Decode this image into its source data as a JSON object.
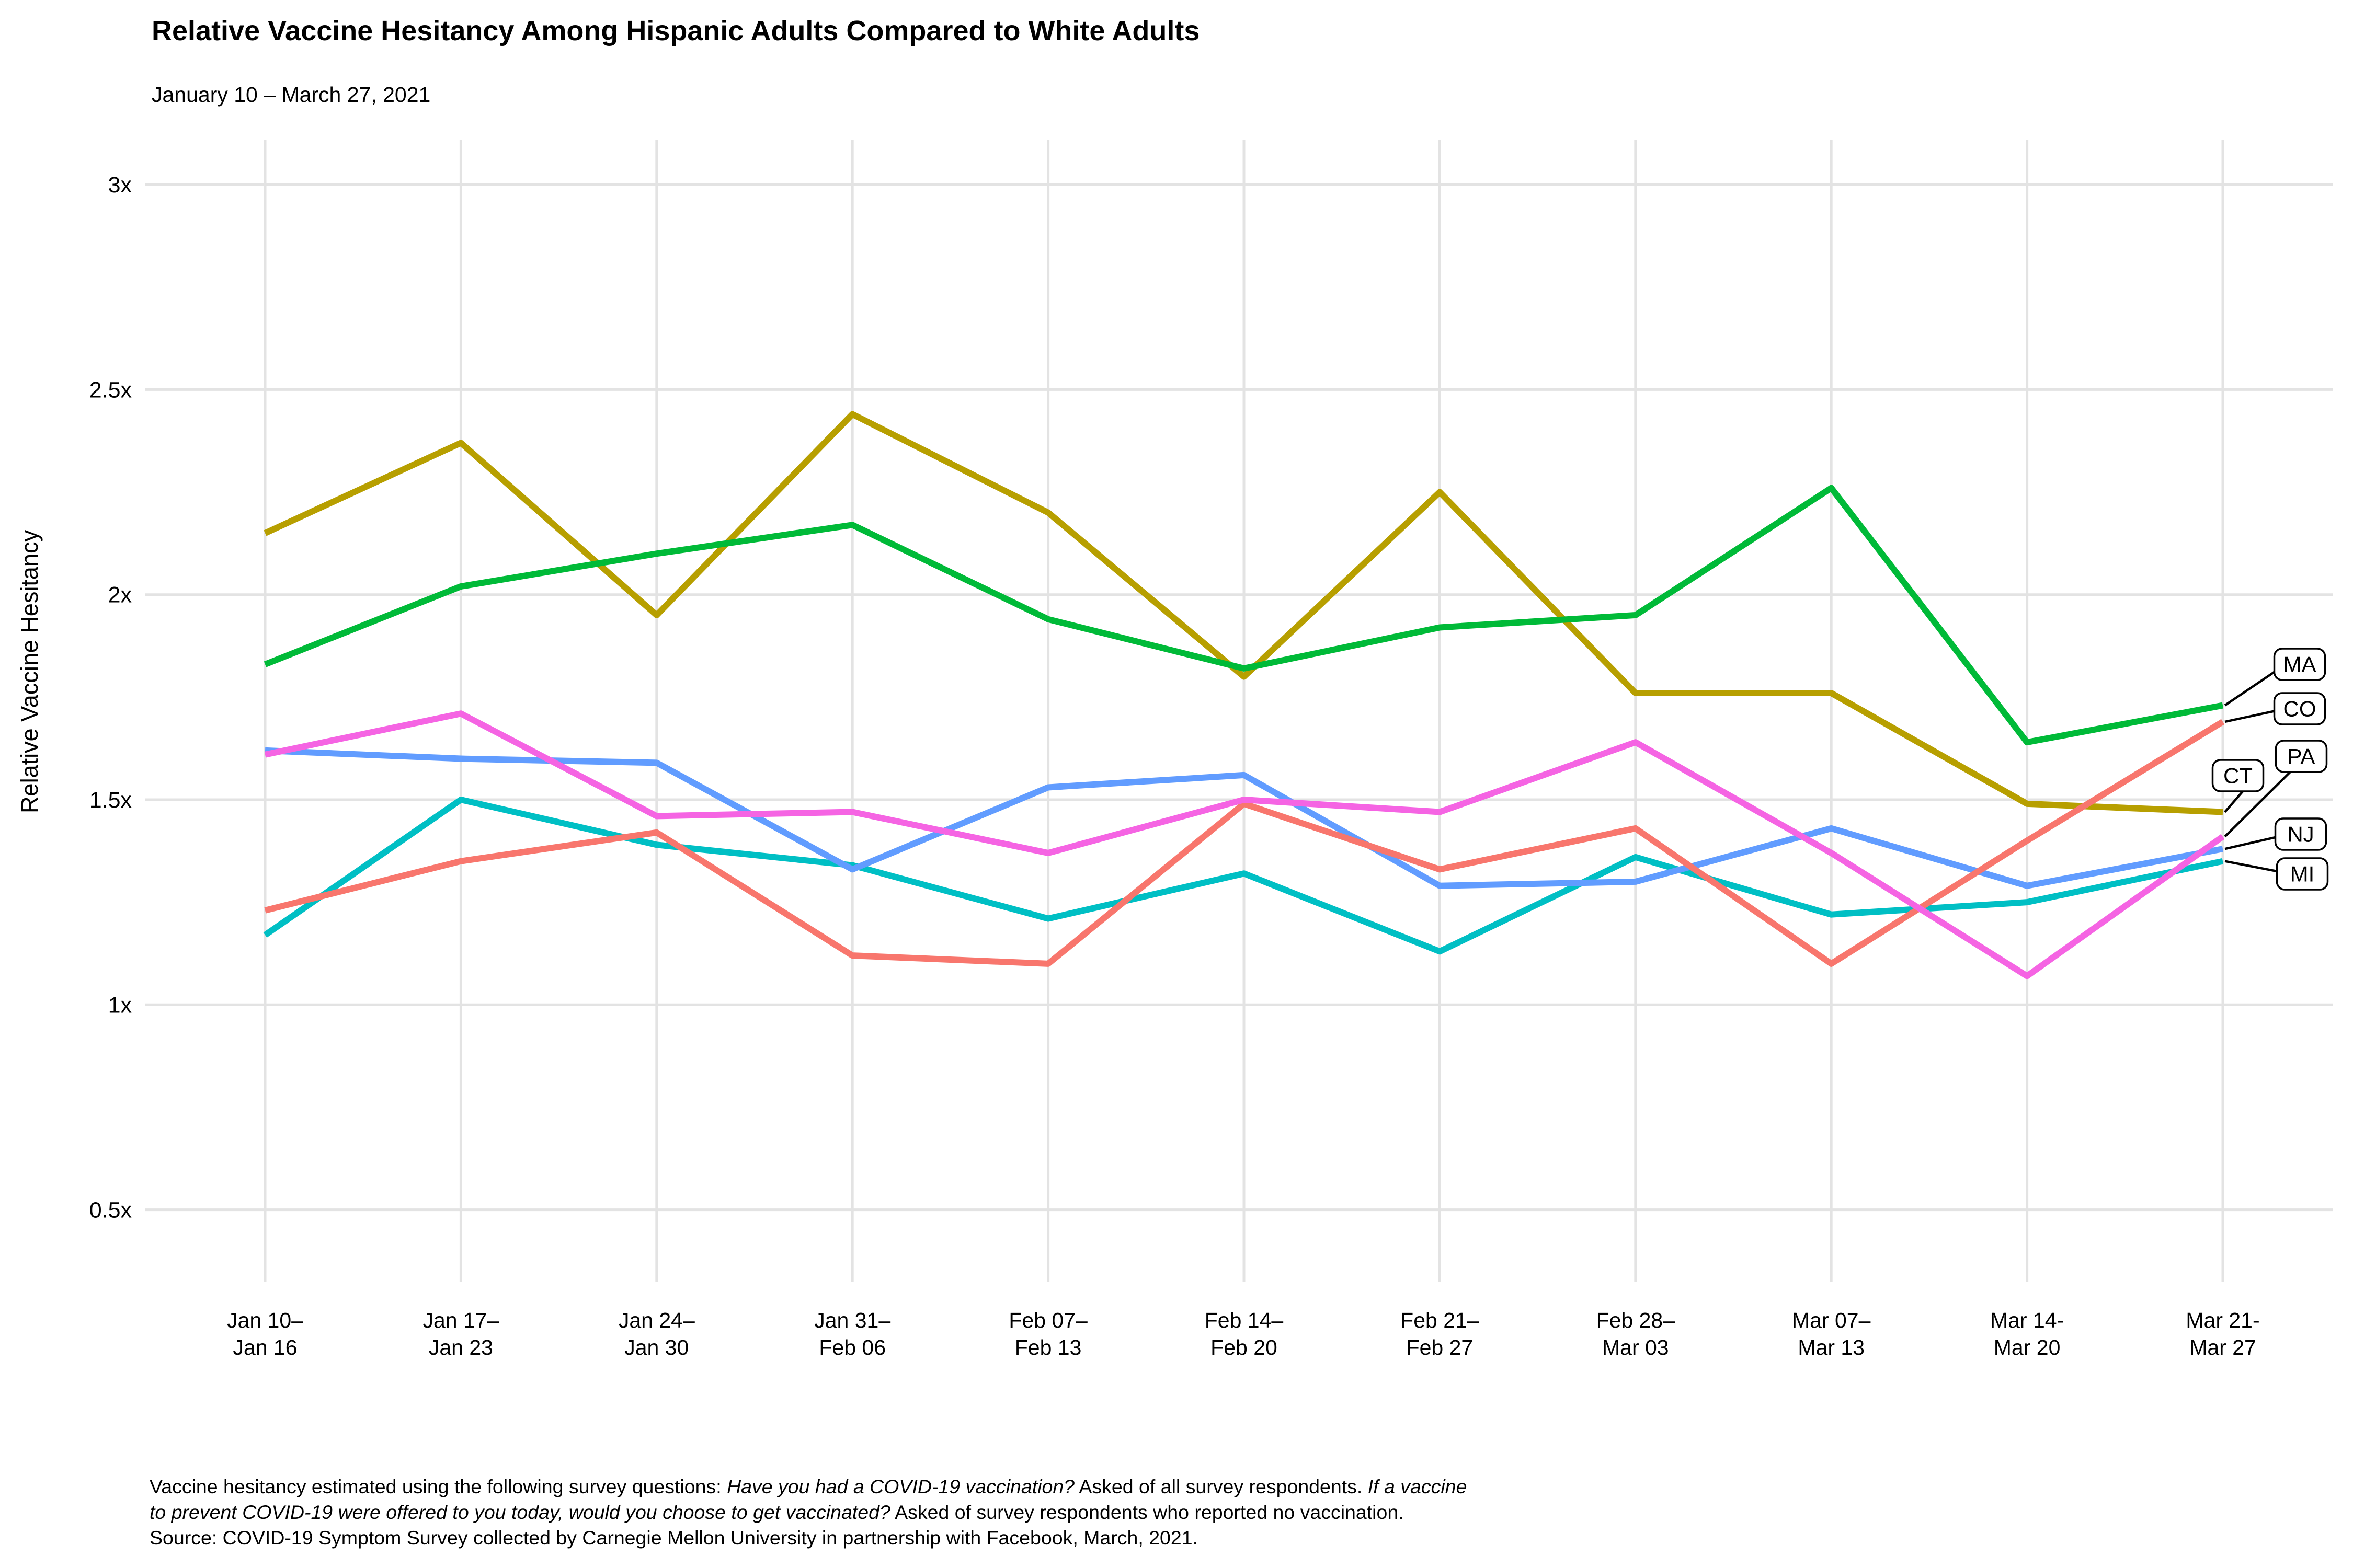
{
  "header": {
    "title": "Relative Vaccine Hesitancy Among Hispanic Adults Compared to White Adults",
    "subtitle": "January 10 – March 27, 2021"
  },
  "chart_data": {
    "type": "line",
    "title": "Relative Vaccine Hesitancy Among Hispanic Adults Compared to White Adults",
    "subtitle": "January 10 – March 27, 2021",
    "ylabel": "Relative Vaccine Hesitancy",
    "xlabel": "",
    "ylim": [
      0.5,
      3.0
    ],
    "grid": true,
    "gridline_color": "#E3E3E3",
    "background_color": "#FFFFFF",
    "legend_position": "right-labels-in-boxes",
    "y_ticks": [
      {
        "value": 3.0,
        "label": "3x"
      },
      {
        "value": 2.5,
        "label": "2.5x"
      },
      {
        "value": 2.0,
        "label": "2x"
      },
      {
        "value": 1.5,
        "label": "1.5x"
      },
      {
        "value": 1.0,
        "label": "1x"
      },
      {
        "value": 0.5,
        "label": "0.5x"
      }
    ],
    "categories": [
      [
        "Jan 10–",
        "Jan 16"
      ],
      [
        "Jan 17–",
        "Jan 23"
      ],
      [
        "Jan 24–",
        "Jan 30"
      ],
      [
        "Jan 31–",
        "Feb 06"
      ],
      [
        "Feb 07–",
        "Feb 13"
      ],
      [
        "Feb 14–",
        "Feb 20"
      ],
      [
        "Feb 21–",
        "Feb 27"
      ],
      [
        "Feb 28–",
        "Mar 03"
      ],
      [
        "Mar 07–",
        "Mar 13"
      ],
      [
        "Mar 14-",
        "Mar 20"
      ],
      [
        "Mar 21-",
        "Mar 27"
      ]
    ],
    "series": [
      {
        "name": "MA",
        "color": "#00BA38",
        "values": [
          1.83,
          2.02,
          2.1,
          2.17,
          1.94,
          1.82,
          1.92,
          1.95,
          2.26,
          1.64,
          1.73
        ]
      },
      {
        "name": "CO",
        "color": "#F8766D",
        "values": [
          1.23,
          1.35,
          1.42,
          1.12,
          1.1,
          1.49,
          1.33,
          1.43,
          1.1,
          1.4,
          1.69
        ]
      },
      {
        "name": "CT",
        "color": "#B79F00",
        "values": [
          2.15,
          2.37,
          1.95,
          2.44,
          2.2,
          1.8,
          2.25,
          1.76,
          1.76,
          1.49,
          1.47
        ]
      },
      {
        "name": "PA",
        "color": "#F564E3",
        "values": [
          1.61,
          1.71,
          1.46,
          1.47,
          1.37,
          1.5,
          1.47,
          1.64,
          1.37,
          1.07,
          1.41
        ]
      },
      {
        "name": "NJ",
        "color": "#619CFF",
        "values": [
          1.62,
          1.6,
          1.59,
          1.33,
          1.53,
          1.56,
          1.29,
          1.3,
          1.43,
          1.29,
          1.38
        ]
      },
      {
        "name": "MI",
        "color": "#00BFC4",
        "values": [
          1.17,
          1.5,
          1.39,
          1.34,
          1.21,
          1.32,
          1.13,
          1.36,
          1.22,
          1.25,
          1.35
        ]
      }
    ],
    "draw_order": [
      "CT",
      "MA",
      "MI",
      "NJ",
      "CO",
      "PA"
    ],
    "end_labels": [
      "MA",
      "CO",
      "PA",
      "CT",
      "NJ",
      "MI"
    ]
  },
  "footnote": {
    "lines": [
      [
        {
          "text": "Vaccine hesitancy estimated using the following survey questions: ",
          "italic": false
        },
        {
          "text": "Have you had a COVID-19 vaccination?",
          "italic": true
        },
        {
          "text": " Asked of all survey respondents. ",
          "italic": false
        },
        {
          "text": "If a vaccine",
          "italic": true
        }
      ],
      [
        {
          "text": "to prevent COVID-19 were offered to you today, would you choose to get vaccinated?",
          "italic": true
        },
        {
          "text": " Asked of survey respondents who reported no vaccination.",
          "italic": false
        }
      ],
      [
        {
          "text": "Source: COVID-19 Symptom Survey collected by Carnegie Mellon University in partnership with Facebook, March, 2021.",
          "italic": false
        }
      ]
    ]
  }
}
